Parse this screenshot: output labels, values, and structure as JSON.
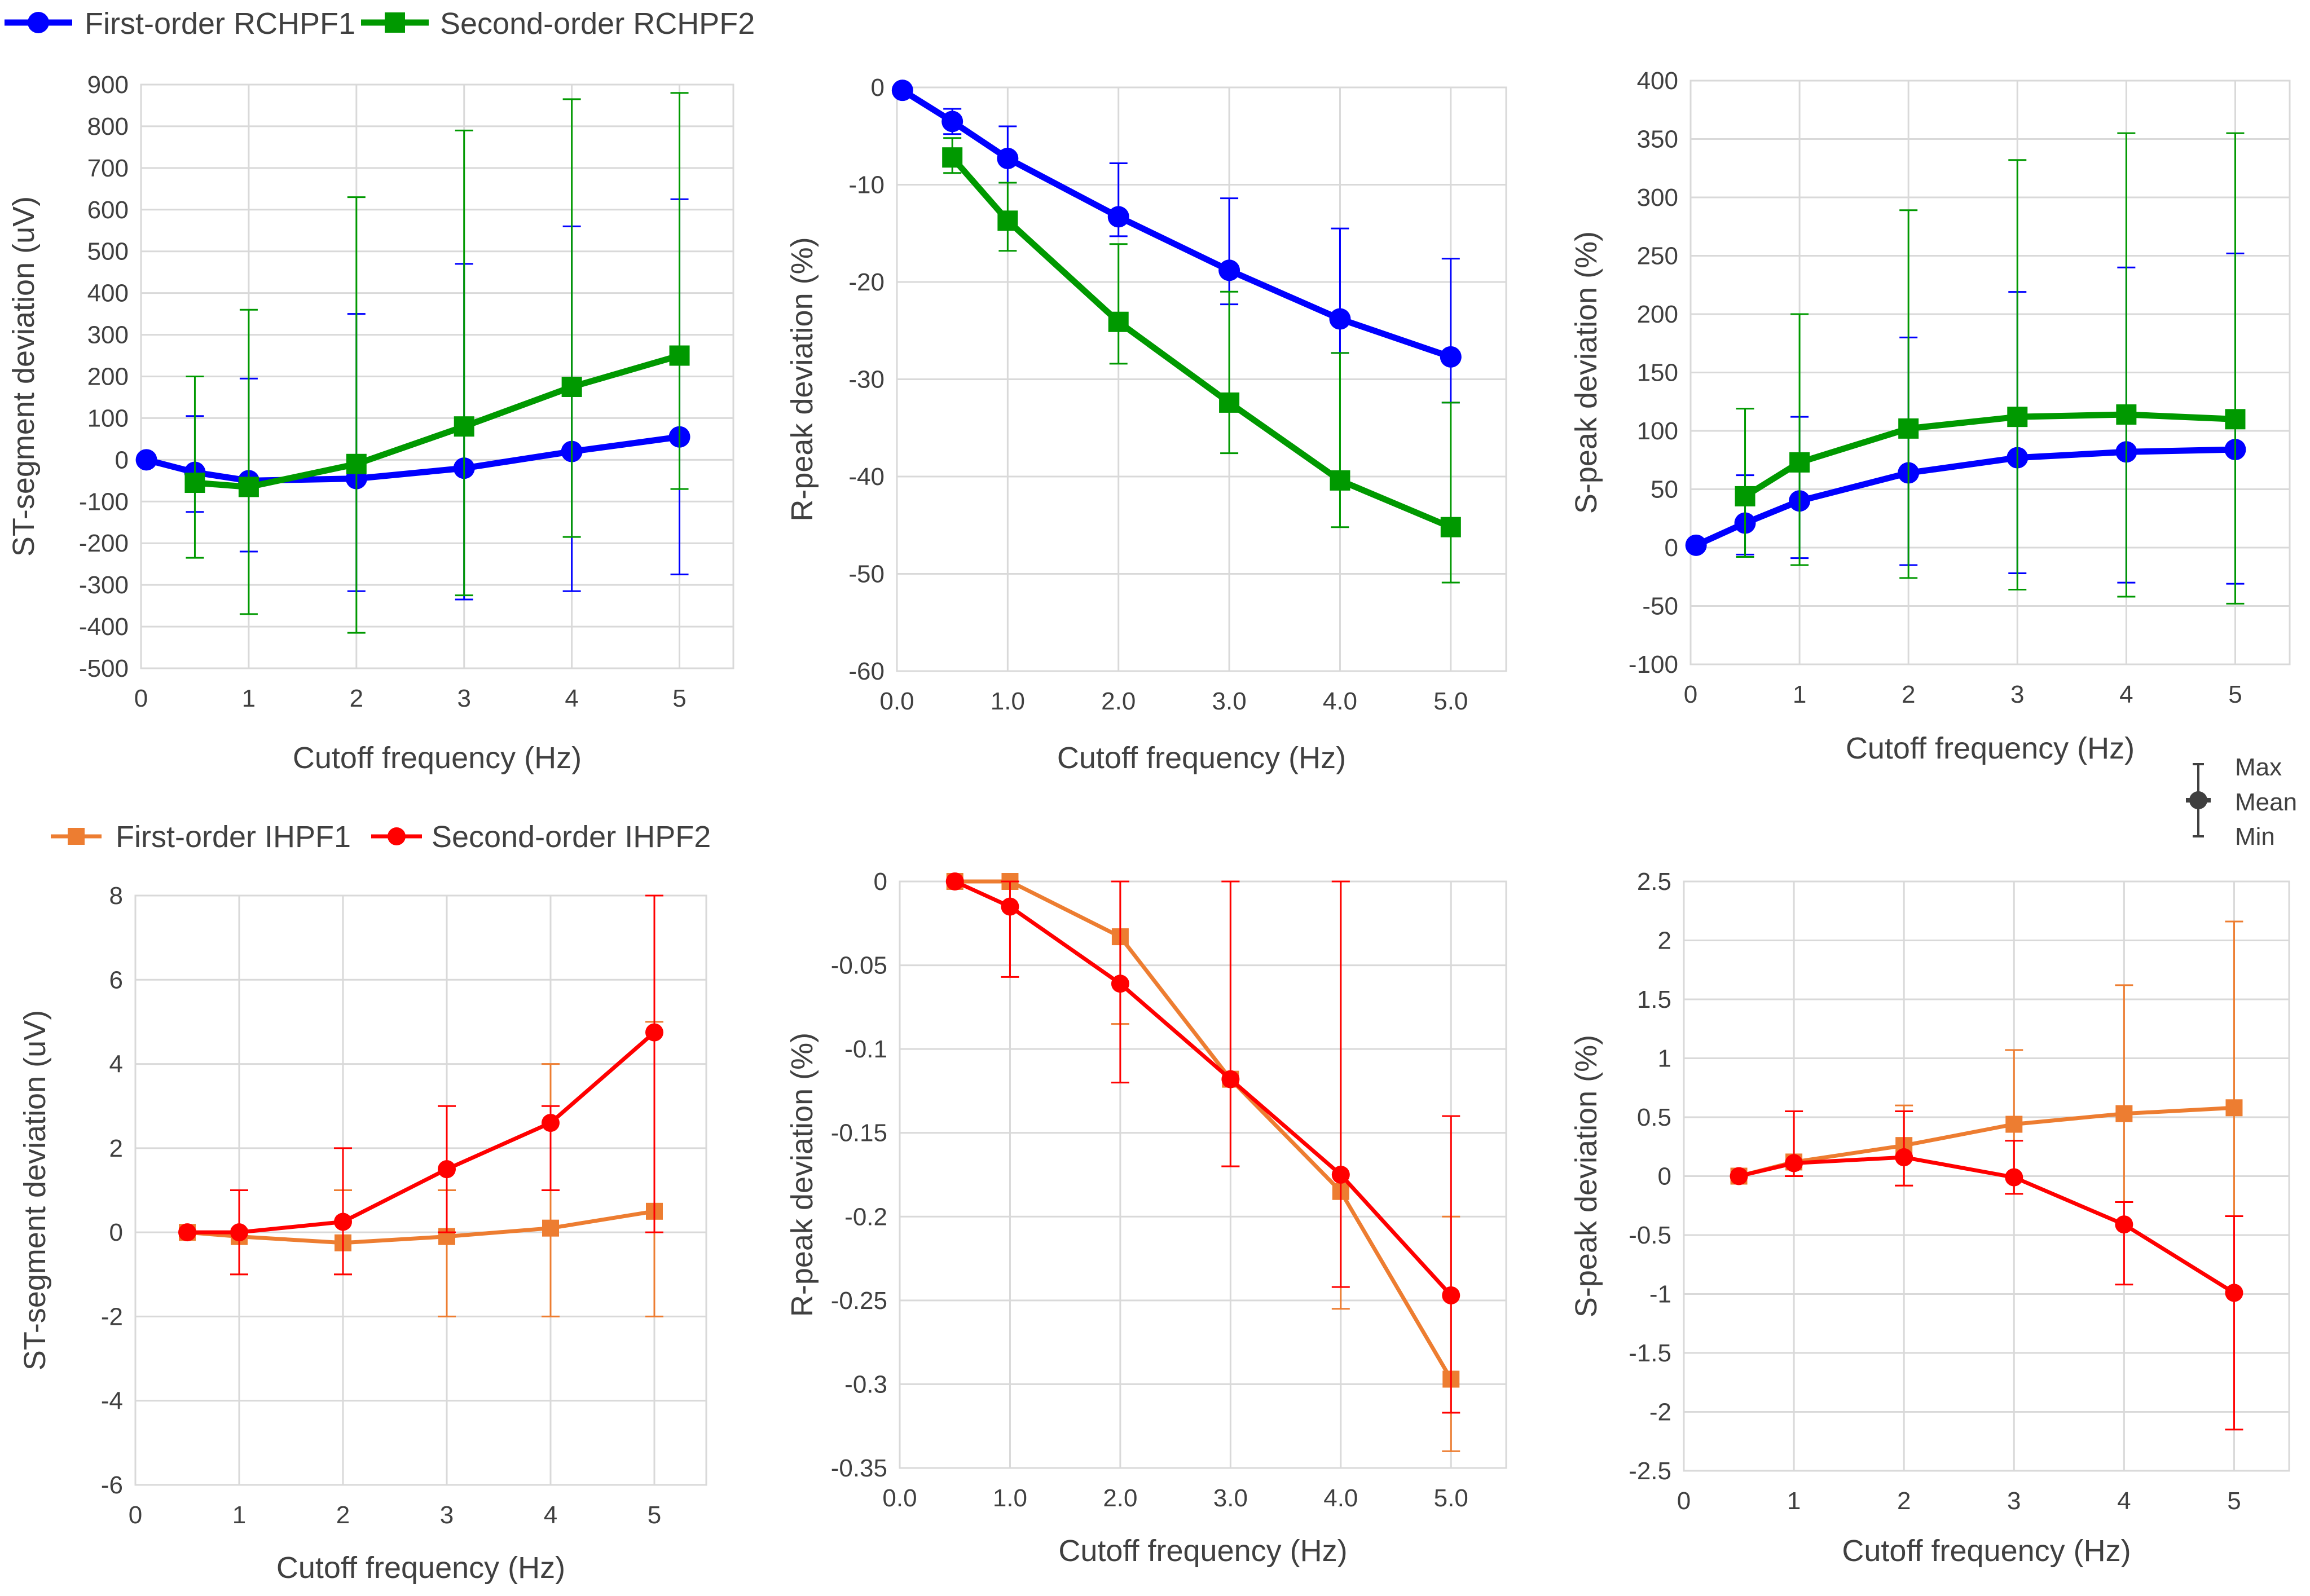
{
  "legends": {
    "top": [
      {
        "label": "First-order RCHPF1",
        "color": "#0000ff",
        "marker": "circle"
      },
      {
        "label": "Second-order RCHPF2",
        "color": "#009900",
        "marker": "square"
      }
    ],
    "bottom": [
      {
        "label": "First-order IHPF1",
        "color": "#ed7d31",
        "marker": "square"
      },
      {
        "label": "Second-order IHPF2",
        "color": "#ff0000",
        "marker": "circle"
      }
    ],
    "errorbar": {
      "max_label": "Max",
      "mean_label": "Mean",
      "min_label": "Min"
    }
  },
  "chart_data": [
    {
      "id": "top-st",
      "type": "line",
      "title": "",
      "xlabel": "Cutoff frequency (Hz)",
      "ylabel": "ST-segment deviation (uV)",
      "xlim": [
        0,
        5.5
      ],
      "ylim": [
        -500,
        900
      ],
      "xticks": [
        0,
        1,
        2,
        3,
        4,
        5
      ],
      "xtick_labels": [
        "0",
        "1",
        "2",
        "3",
        "4",
        "5"
      ],
      "yticks": [
        -500,
        -400,
        -300,
        -200,
        -100,
        0,
        100,
        200,
        300,
        400,
        500,
        600,
        700,
        800,
        900
      ],
      "ytick_labels": [
        "-500",
        "-400",
        "-300",
        "-200",
        "-100",
        "0",
        "100",
        "200",
        "300",
        "400",
        "500",
        "600",
        "700",
        "800",
        "900"
      ],
      "grid": true,
      "series": [
        {
          "name": "First-order RCHPF1",
          "color": "#0000ff",
          "marker": "circle",
          "x": [
            0.05,
            0.5,
            1,
            2,
            3,
            4,
            5
          ],
          "values": [
            0,
            -30,
            -50,
            -45,
            -20,
            20,
            55
          ],
          "max": [
            null,
            105,
            195,
            350,
            470,
            560,
            625
          ],
          "min": [
            null,
            -125,
            -220,
            -315,
            -335,
            -315,
            -275
          ]
        },
        {
          "name": "Second-order RCHPF2",
          "color": "#009900",
          "marker": "square",
          "x": [
            0.5,
            1,
            2,
            3,
            4,
            5
          ],
          "values": [
            -55,
            -65,
            -10,
            80,
            175,
            250
          ],
          "max": [
            200,
            360,
            630,
            790,
            865,
            880
          ],
          "min": [
            -235,
            -370,
            -415,
            -325,
            -185,
            -70
          ]
        }
      ]
    },
    {
      "id": "top-r",
      "type": "line",
      "title": "",
      "xlabel": "Cutoff frequency (Hz)",
      "ylabel": "R-peak deviation (%)",
      "xlim": [
        0,
        5.5
      ],
      "ylim": [
        -60,
        0
      ],
      "xticks": [
        0,
        1,
        2,
        3,
        4,
        5
      ],
      "xtick_labels": [
        "0.0",
        "1.0",
        "2.0",
        "3.0",
        "4.0",
        "5.0"
      ],
      "yticks": [
        -60,
        -50,
        -40,
        -30,
        -20,
        -10,
        0
      ],
      "ytick_labels": [
        "-60",
        "-50",
        "-40",
        "-30",
        "-20",
        "-10",
        "0"
      ],
      "grid": true,
      "series": [
        {
          "name": "First-order RCHPF1",
          "color": "#0000ff",
          "marker": "circle",
          "x": [
            0.05,
            0.5,
            1,
            2,
            3,
            4,
            5
          ],
          "values": [
            -0.3,
            -3.5,
            -7.3,
            -13.3,
            -18.8,
            -23.8,
            -27.7
          ],
          "max": [
            null,
            -2.2,
            -4,
            -7.8,
            -11.4,
            -14.5,
            -17.6
          ],
          "min": [
            null,
            -4.8,
            -9.8,
            -15.3,
            -22.3,
            -27.3,
            -32.4
          ]
        },
        {
          "name": "Second-order RCHPF2",
          "color": "#009900",
          "marker": "square",
          "x": [
            0.5,
            1,
            2,
            3,
            4,
            5
          ],
          "values": [
            -7.2,
            -13.7,
            -24.1,
            -32.4,
            -40.4,
            -45.2
          ],
          "max": [
            -5.2,
            -9.8,
            -16.1,
            -21,
            -27.3,
            -32.4
          ],
          "min": [
            -8.8,
            -16.8,
            -28.4,
            -37.6,
            -45.2,
            -50.9
          ]
        }
      ]
    },
    {
      "id": "top-s",
      "type": "line",
      "title": "",
      "xlabel": "Cutoff frequency (Hz)",
      "ylabel": "S-peak deviation (%)",
      "xlim": [
        0,
        5.5
      ],
      "ylim": [
        -100,
        400
      ],
      "xticks": [
        0,
        1,
        2,
        3,
        4,
        5
      ],
      "xtick_labels": [
        "0",
        "1",
        "2",
        "3",
        "4",
        "5"
      ],
      "yticks": [
        -100,
        -50,
        0,
        50,
        100,
        150,
        200,
        250,
        300,
        350,
        400
      ],
      "ytick_labels": [
        "-100",
        "-50",
        "0",
        "50",
        "100",
        "150",
        "200",
        "250",
        "300",
        "350",
        "400"
      ],
      "grid": true,
      "series": [
        {
          "name": "First-order RCHPF1",
          "color": "#0000ff",
          "marker": "circle",
          "x": [
            0.05,
            0.5,
            1,
            2,
            3,
            4,
            5
          ],
          "values": [
            2,
            21,
            40,
            64,
            77,
            82,
            84
          ],
          "max": [
            null,
            62,
            112,
            180,
            219,
            240,
            252
          ],
          "min": [
            null,
            -6,
            -9,
            -15,
            -22,
            -30,
            -31
          ]
        },
        {
          "name": "Second-order RCHPF2",
          "color": "#009900",
          "marker": "square",
          "x": [
            0.5,
            1,
            2,
            3,
            4,
            5
          ],
          "values": [
            44,
            73,
            102,
            112,
            114,
            110
          ],
          "max": [
            119,
            200,
            289,
            332,
            355,
            355
          ],
          "min": [
            -8,
            -15,
            -26,
            -36,
            -42,
            -48
          ]
        }
      ]
    },
    {
      "id": "bottom-st",
      "type": "line",
      "title": "",
      "xlabel": "Cutoff frequency (Hz)",
      "ylabel": "ST-segment deviation (uV)",
      "xlim": [
        0,
        5.5
      ],
      "ylim": [
        -6,
        8
      ],
      "xticks": [
        0,
        1,
        2,
        3,
        4,
        5
      ],
      "xtick_labels": [
        "0",
        "1",
        "2",
        "3",
        "4",
        "5"
      ],
      "yticks": [
        -6,
        -4,
        -2,
        0,
        2,
        4,
        6,
        8
      ],
      "ytick_labels": [
        "-6",
        "-4",
        "-2",
        "0",
        "2",
        "4",
        "6",
        "8"
      ],
      "grid": true,
      "series": [
        {
          "name": "First-order IHPF1",
          "color": "#ed7d31",
          "marker": "square",
          "x": [
            0.5,
            1,
            2,
            3,
            4,
            5
          ],
          "values": [
            0,
            -0.1,
            -0.25,
            -0.1,
            0.1,
            0.5
          ],
          "max": [
            null,
            1,
            1,
            1,
            4,
            5
          ],
          "min": [
            null,
            -1,
            -1,
            -2,
            -2,
            -2
          ]
        },
        {
          "name": "Second-order IHPF2",
          "color": "#ff0000",
          "marker": "circle",
          "x": [
            0.5,
            1,
            2,
            3,
            4,
            5
          ],
          "values": [
            0,
            0,
            0.25,
            1.5,
            2.6,
            4.75
          ],
          "max": [
            null,
            1,
            2,
            3,
            3,
            8
          ],
          "min": [
            null,
            -1,
            -1,
            0,
            1,
            0
          ]
        }
      ]
    },
    {
      "id": "bottom-r",
      "type": "line",
      "title": "",
      "xlabel": "Cutoff frequency (Hz)",
      "ylabel": "R-peak deviation (%)",
      "xlim": [
        0,
        5.5
      ],
      "ylim": [
        -0.35,
        0
      ],
      "xticks": [
        0,
        1,
        2,
        3,
        4,
        5
      ],
      "xtick_labels": [
        "0.0",
        "1.0",
        "2.0",
        "3.0",
        "4.0",
        "5.0"
      ],
      "yticks": [
        -0.35,
        -0.3,
        -0.25,
        -0.2,
        -0.15,
        -0.1,
        -0.05,
        0
      ],
      "ytick_labels": [
        "-0.35",
        "-0.3",
        "-0.25",
        "-0.2",
        "-0.15",
        "-0.1",
        "-0.05",
        "0"
      ],
      "grid": true,
      "series": [
        {
          "name": "First-order IHPF1",
          "color": "#ed7d31",
          "marker": "square",
          "x": [
            0.5,
            1,
            2,
            3,
            4,
            5
          ],
          "values": [
            0,
            0,
            -0.033,
            -0.118,
            -0.185,
            -0.297
          ],
          "max": [
            null,
            null,
            0,
            0,
            0,
            -0.2
          ],
          "min": [
            null,
            null,
            -0.085,
            -0.17,
            -0.255,
            -0.34
          ]
        },
        {
          "name": "Second-order IHPF2",
          "color": "#ff0000",
          "marker": "circle",
          "x": [
            0.5,
            1,
            2,
            3,
            4,
            5
          ],
          "values": [
            0,
            -0.015,
            -0.061,
            -0.118,
            -0.175,
            -0.247
          ],
          "max": [
            null,
            0,
            0,
            0,
            0,
            -0.14
          ],
          "min": [
            null,
            -0.057,
            -0.12,
            -0.17,
            -0.242,
            -0.317
          ]
        }
      ]
    },
    {
      "id": "bottom-s",
      "type": "line",
      "title": "",
      "xlabel": "Cutoff frequency (Hz)",
      "ylabel": "S-peak deviation (%)",
      "xlim": [
        0,
        5.5
      ],
      "ylim": [
        -2.5,
        2.5
      ],
      "xticks": [
        0,
        1,
        2,
        3,
        4,
        5
      ],
      "xtick_labels": [
        "0",
        "1",
        "2",
        "3",
        "4",
        "5"
      ],
      "yticks": [
        -2.5,
        -2,
        -1.5,
        -1,
        -0.5,
        0,
        0.5,
        1,
        1.5,
        2,
        2.5
      ],
      "ytick_labels": [
        "-2.5",
        "-2",
        "-1.5",
        "-1",
        "-0.5",
        "0",
        "0.5",
        "1",
        "1.5",
        "2",
        "2.5"
      ],
      "grid": true,
      "series": [
        {
          "name": "First-order IHPF1",
          "color": "#ed7d31",
          "marker": "square",
          "x": [
            0.5,
            1,
            2,
            3,
            4,
            5
          ],
          "values": [
            0,
            0.12,
            0.26,
            0.44,
            0.53,
            0.58
          ],
          "max": [
            null,
            0.55,
            0.6,
            1.07,
            1.62,
            2.16
          ],
          "min": [
            null,
            0,
            -0.08,
            -0.15,
            -0.22,
            -0.34
          ]
        },
        {
          "name": "Second-order IHPF2",
          "color": "#ff0000",
          "marker": "circle",
          "x": [
            0.5,
            1,
            2,
            3,
            4,
            5
          ],
          "values": [
            0,
            0.11,
            0.16,
            -0.01,
            -0.41,
            -0.99
          ],
          "max": [
            null,
            0.55,
            0.55,
            0.3,
            -0.22,
            -0.34
          ],
          "min": [
            null,
            0,
            -0.08,
            -0.15,
            -0.92,
            -2.15
          ]
        }
      ]
    }
  ]
}
